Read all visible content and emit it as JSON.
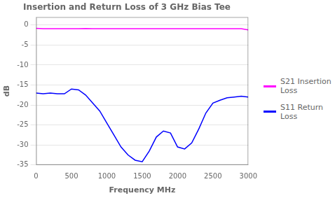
{
  "chart_data": {
    "type": "line",
    "title": "Insertion and Return Loss of 3 GHz Bias Tee",
    "xlabel": "Frequency MHz",
    "ylabel": "dB",
    "x": [
      0,
      100,
      200,
      300,
      400,
      500,
      600,
      700,
      800,
      900,
      1000,
      1100,
      1200,
      1300,
      1400,
      1500,
      1600,
      1700,
      1800,
      1900,
      2000,
      2100,
      2200,
      2300,
      2400,
      2500,
      2600,
      2700,
      2800,
      2900,
      3000
    ],
    "series": [
      {
        "name": "S21 Insertion\nLoss",
        "color": "#ff00ff",
        "values": [
          -0.8,
          -0.9,
          -0.9,
          -0.9,
          -0.9,
          -0.9,
          -0.9,
          -0.85,
          -0.9,
          -0.9,
          -0.9,
          -0.9,
          -0.9,
          -0.9,
          -0.9,
          -0.9,
          -0.9,
          -0.9,
          -0.9,
          -0.9,
          -0.9,
          -0.9,
          -0.9,
          -0.9,
          -0.9,
          -0.9,
          -0.9,
          -0.9,
          -0.9,
          -0.9,
          -1.2
        ]
      },
      {
        "name": "S11 Return\nLoss",
        "color": "#0000ff",
        "values": [
          -17.0,
          -17.2,
          -17.0,
          -17.2,
          -17.2,
          -16.0,
          -16.2,
          -17.5,
          -19.5,
          -21.5,
          -24.5,
          -27.5,
          -30.5,
          -32.5,
          -33.8,
          -34.2,
          -31.5,
          -28.0,
          -26.5,
          -27.0,
          -30.5,
          -31.0,
          -29.5,
          -26.0,
          -22.0,
          -19.5,
          -18.8,
          -18.2,
          -18.0,
          -17.8,
          -18.0
        ]
      }
    ],
    "xlim": [
      0,
      3000
    ],
    "ylim": [
      -35,
      2
    ],
    "xticks": [
      0,
      500,
      1000,
      1500,
      2000,
      2500,
      3000
    ],
    "yticks": [
      0,
      -5,
      -10,
      -15,
      -20,
      -25,
      -30,
      -35
    ],
    "grid": "y",
    "legend": "right"
  }
}
